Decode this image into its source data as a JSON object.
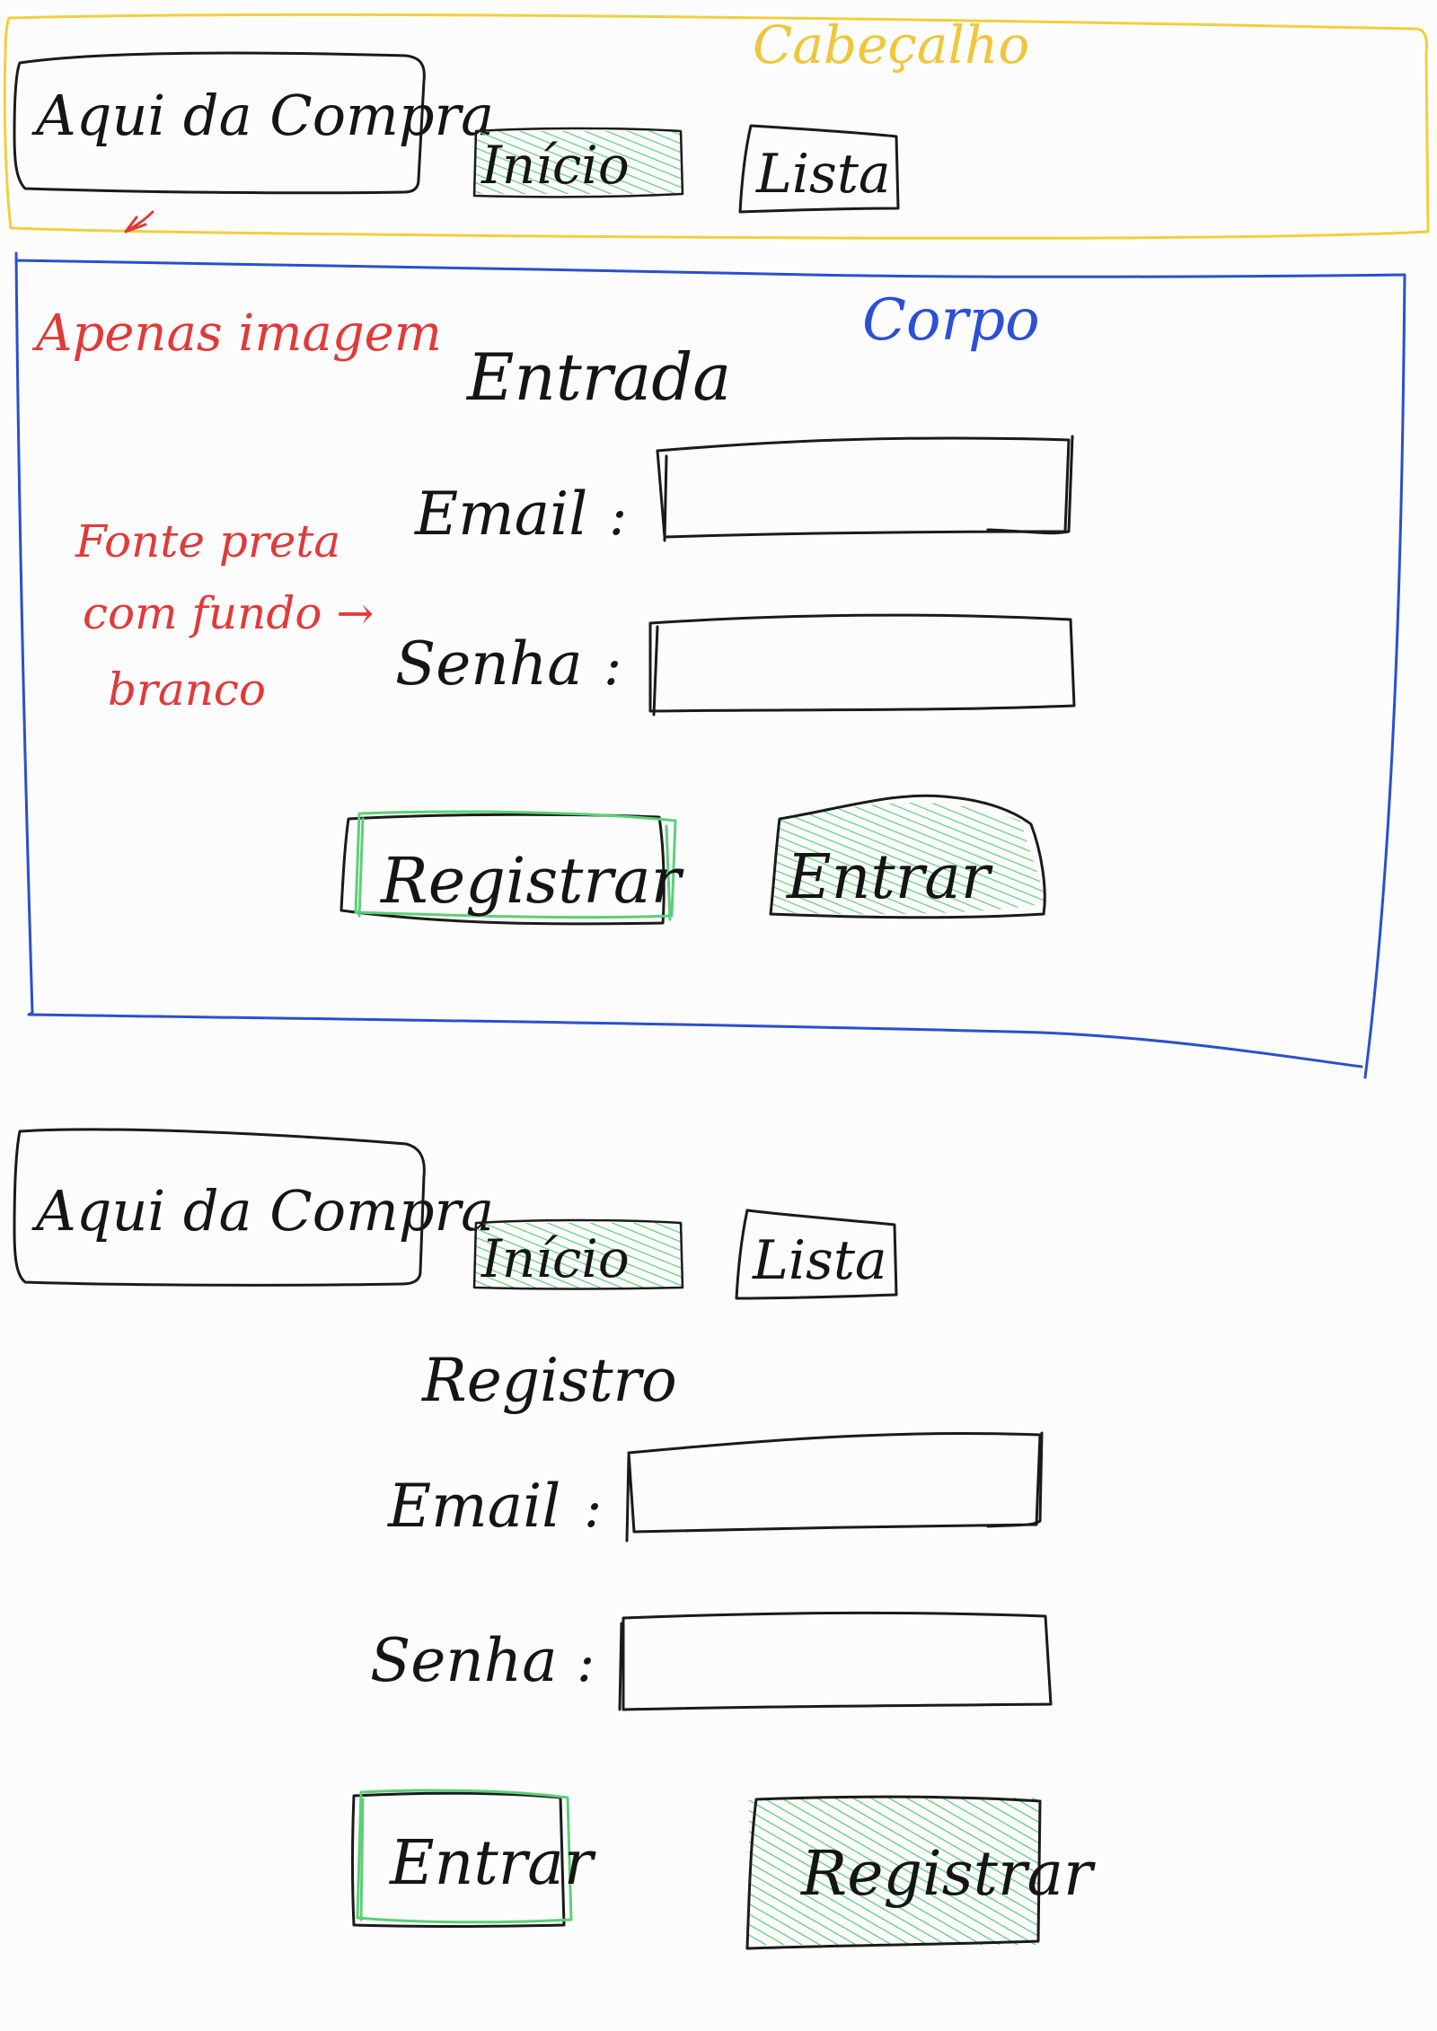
{
  "colors": {
    "background": "#fcfcfc",
    "ink": "#1a1a1a",
    "header_region": "#f2cf3c",
    "body_region": "#2a4fcf",
    "annotation": "#e03a3a",
    "highlight": "#5ccf78"
  },
  "header_label": "Cabeçalho",
  "body_label": "Corpo",
  "annotations": {
    "logo_note": "Apenas imagem",
    "font_note": [
      "Fonte preta",
      "com fundo →",
      "branco"
    ]
  },
  "login_screen": {
    "logo": "Aqui da Compra",
    "nav": [
      {
        "label": "Início",
        "highlighted": true
      },
      {
        "label": "Lista",
        "highlighted": false
      }
    ],
    "title": "Entrada",
    "fields": [
      {
        "label": "Email",
        "separator": ":"
      },
      {
        "label": "Senha",
        "separator": ":"
      }
    ],
    "buttons": [
      {
        "label": "Registrar",
        "style": "outlined"
      },
      {
        "label": "Entrar",
        "style": "hatched"
      }
    ]
  },
  "register_screen": {
    "logo": "Aqui da Compra",
    "nav": [
      {
        "label": "Início",
        "highlighted": true
      },
      {
        "label": "Lista",
        "highlighted": false
      }
    ],
    "title": "Registro",
    "fields": [
      {
        "label": "Email",
        "separator": ":"
      },
      {
        "label": "Senha",
        "separator": ":"
      }
    ],
    "buttons": [
      {
        "label": "Entrar",
        "style": "outlined"
      },
      {
        "label": "Registrar",
        "style": "hatched"
      }
    ]
  }
}
